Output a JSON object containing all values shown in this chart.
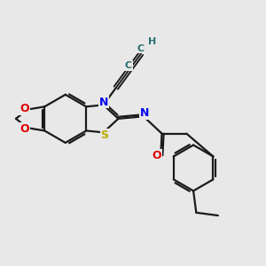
{
  "bg_color": "#e8e8e8",
  "bond_color": "#1a1a1a",
  "N_color": "#0000ee",
  "O_color": "#dd0000",
  "S_color": "#bbaa00",
  "C_alkyne_color": "#2a7070",
  "H_color": "#2a7070",
  "lw": 1.6,
  "figsize": [
    3.0,
    3.0
  ],
  "dpi": 100,
  "xlim": [
    -2.0,
    2.6
  ],
  "ylim": [
    -2.6,
    2.0
  ]
}
